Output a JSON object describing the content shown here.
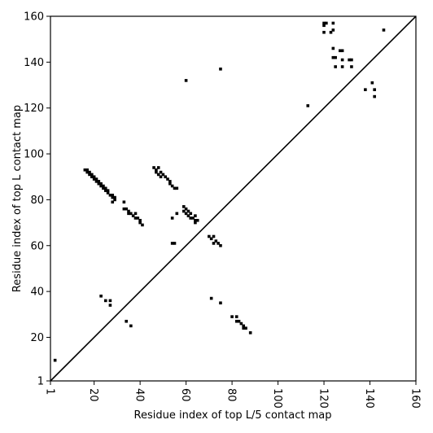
{
  "chart_data": {
    "type": "scatter",
    "xlabel": "Residue index of top L/5 contact map",
    "ylabel": "Residue index of top L contact map",
    "xlim": [
      1,
      160
    ],
    "ylim": [
      1,
      160
    ],
    "xticks": [
      1,
      20,
      40,
      60,
      80,
      100,
      120,
      140,
      160
    ],
    "yticks": [
      1,
      20,
      40,
      60,
      80,
      100,
      120,
      140,
      160
    ],
    "color": "#000000",
    "marker": "square",
    "diagonal": true,
    "x": [
      16,
      17,
      17,
      18,
      18,
      19,
      19,
      20,
      20,
      21,
      21,
      22,
      22,
      23,
      23,
      24,
      24,
      25,
      25,
      26,
      26,
      27,
      28,
      28,
      29,
      29,
      28,
      33,
      33,
      34,
      35,
      35,
      36,
      37,
      38,
      38,
      39,
      40,
      40,
      41,
      46,
      47,
      48,
      47,
      48,
      49,
      50,
      49,
      51,
      52,
      53,
      53,
      54,
      55,
      56,
      54,
      56,
      54,
      55,
      60,
      75,
      59,
      60,
      59,
      61,
      60,
      62,
      61,
      62,
      63,
      64,
      64,
      65,
      64,
      70,
      71,
      72,
      73,
      72,
      74,
      75,
      113,
      120,
      121,
      120,
      124,
      120,
      123,
      124,
      124,
      124,
      125,
      127,
      128,
      128,
      131,
      132,
      125,
      128,
      132,
      146,
      3,
      23,
      25,
      27,
      27,
      34,
      36,
      71,
      75,
      80,
      82,
      82,
      83,
      84,
      85,
      86,
      85,
      88,
      138,
      141,
      142,
      142
    ],
    "values": [
      93,
      93,
      92,
      92,
      91,
      91,
      90,
      90,
      89,
      89,
      88,
      88,
      87,
      87,
      86,
      86,
      85,
      85,
      84,
      84,
      83,
      82,
      82,
      81,
      81,
      80,
      79,
      79,
      76,
      76,
      75,
      74,
      74,
      73,
      72,
      74,
      72,
      71,
      70,
      69,
      94,
      93,
      94,
      92,
      91,
      92,
      91,
      90,
      90,
      89,
      88,
      87,
      86,
      85,
      85,
      72,
      74,
      61,
      61,
      132,
      137,
      77,
      76,
      75,
      75,
      74,
      74,
      73,
      72,
      72,
      73,
      71,
      71,
      70,
      64,
      63,
      64,
      62,
      61,
      61,
      60,
      121,
      157,
      157,
      156,
      157,
      153,
      153,
      154,
      146,
      142,
      142,
      145,
      145,
      141,
      141,
      141,
      138,
      138,
      138,
      154,
      10,
      38,
      36,
      36,
      34,
      27,
      25,
      37,
      35,
      29,
      29,
      27,
      27,
      26,
      24,
      24,
      25,
      22,
      128,
      131,
      128,
      125
    ]
  }
}
